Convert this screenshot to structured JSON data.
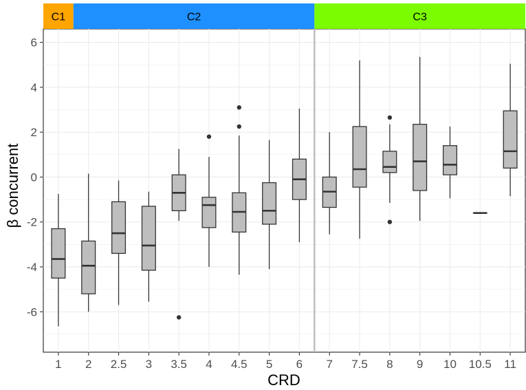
{
  "chart_data": {
    "type": "boxplot",
    "title": "",
    "xlabel": "CRD",
    "ylabel": "β concurrent",
    "ylim": [
      -7.8,
      6.6
    ],
    "yticks": [
      -6,
      -4,
      -2,
      0,
      2,
      4,
      6
    ],
    "ytick_labels": [
      "-6",
      "-4",
      "-2",
      "0",
      "2",
      "4",
      "6"
    ],
    "grid": true,
    "categories": [
      "1",
      "2",
      "2.5",
      "3",
      "3.5",
      "4",
      "4.5",
      "5",
      "6",
      "7",
      "7.5",
      "8",
      "9",
      "10",
      "10.5",
      "11"
    ],
    "boxes": [
      {
        "category": "1",
        "min": -6.65,
        "q1": -4.5,
        "median": -3.65,
        "q3": -2.3,
        "max": -0.75,
        "outliers": []
      },
      {
        "category": "2",
        "min": -6.0,
        "q1": -5.2,
        "median": -3.95,
        "q3": -2.85,
        "max": 0.15,
        "outliers": []
      },
      {
        "category": "2.5",
        "min": -5.7,
        "q1": -3.4,
        "median": -2.5,
        "q3": -1.1,
        "max": -0.15,
        "outliers": []
      },
      {
        "category": "3",
        "min": -5.55,
        "q1": -4.15,
        "median": -3.05,
        "q3": -1.3,
        "max": -0.65,
        "outliers": []
      },
      {
        "category": "3.5",
        "min": -1.95,
        "q1": -1.5,
        "median": -0.7,
        "q3": 0.1,
        "max": 1.25,
        "outliers": [
          -6.25
        ]
      },
      {
        "category": "4",
        "min": -4.0,
        "q1": -2.25,
        "median": -1.25,
        "q3": -0.9,
        "max": 0.9,
        "outliers": [
          1.8
        ]
      },
      {
        "category": "4.5",
        "min": -4.35,
        "q1": -2.45,
        "median": -1.55,
        "q3": -0.7,
        "max": 1.85,
        "outliers": [
          2.25,
          3.1
        ]
      },
      {
        "category": "5",
        "min": -4.1,
        "q1": -2.1,
        "median": -1.5,
        "q3": -0.25,
        "max": 1.65,
        "outliers": []
      },
      {
        "category": "6",
        "min": -2.9,
        "q1": -1.0,
        "median": -0.1,
        "q3": 0.8,
        "max": 3.05,
        "outliers": []
      },
      {
        "category": "7",
        "min": -2.55,
        "q1": -1.35,
        "median": -0.65,
        "q3": 0.0,
        "max": 2.0,
        "outliers": []
      },
      {
        "category": "7.5",
        "min": -2.75,
        "q1": -0.45,
        "median": 0.35,
        "q3": 2.25,
        "max": 5.2,
        "outliers": []
      },
      {
        "category": "8",
        "min": -1.15,
        "q1": 0.2,
        "median": 0.45,
        "q3": 1.15,
        "max": 2.35,
        "outliers": [
          2.65,
          -2.0
        ]
      },
      {
        "category": "9",
        "min": -1.95,
        "q1": -0.6,
        "median": 0.7,
        "q3": 2.35,
        "max": 5.35,
        "outliers": []
      },
      {
        "category": "10",
        "min": -0.95,
        "q1": 0.1,
        "median": 0.55,
        "q3": 1.4,
        "max": 2.25,
        "outliers": []
      },
      {
        "category": "10.5",
        "min": -1.6,
        "q1": -1.6,
        "median": -1.6,
        "q3": -1.6,
        "max": -1.6,
        "outliers": []
      },
      {
        "category": "11",
        "min": -0.85,
        "q1": 0.4,
        "median": 1.15,
        "q3": 2.95,
        "max": 5.05,
        "outliers": []
      }
    ],
    "groups": [
      {
        "label": "C1",
        "from_index": 0,
        "to_index": 0,
        "color": "#ffa500"
      },
      {
        "label": "C2",
        "from_index": 1,
        "to_index": 8,
        "color": "#1e90ff"
      },
      {
        "label": "C3",
        "from_index": 9,
        "to_index": 15,
        "color": "#7cfc00"
      }
    ],
    "divider_between": [
      "6",
      "7"
    ],
    "colors": {
      "box_fill": "#bebebe",
      "box_stroke": "#333333",
      "grid": "#ebebeb",
      "panel_border": "#333333",
      "divider": "#bebebe"
    }
  }
}
